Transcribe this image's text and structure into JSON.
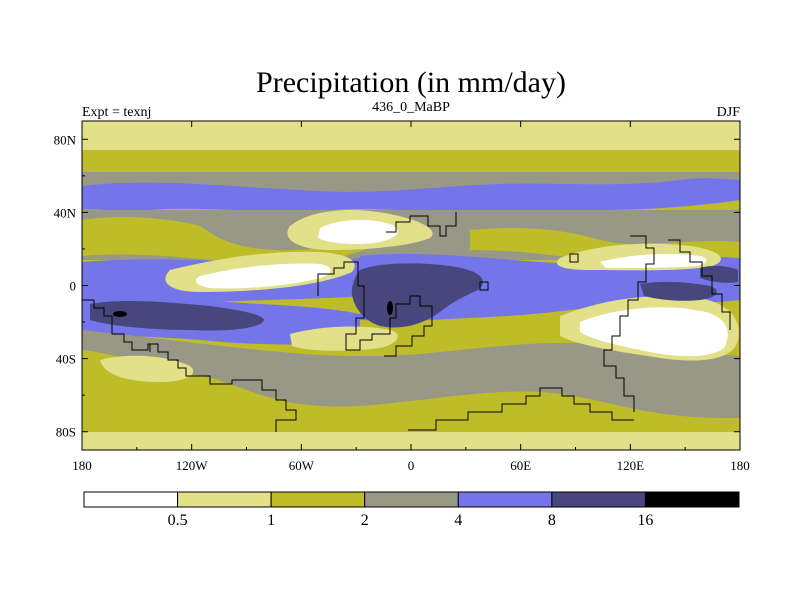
{
  "chart_data": {
    "type": "heatmap",
    "title": "Precipitation (in mm/day)",
    "left_string": "Expt = texnj",
    "center_string": "436_0_MaBP",
    "right_string": "DJF",
    "x_ticks": [
      "180",
      "120W",
      "60W",
      "0",
      "60E",
      "120E",
      "180"
    ],
    "x_values": [
      -180,
      -120,
      -60,
      0,
      60,
      120,
      180
    ],
    "y_ticks": [
      "80N",
      "40N",
      "0",
      "40S",
      "80S"
    ],
    "y_values": [
      80,
      40,
      0,
      -40,
      -80
    ],
    "xlim": [
      -180,
      180
    ],
    "ylim": [
      -90,
      90
    ],
    "colorbar": {
      "levels": [
        "0.5",
        "1",
        "2",
        "4",
        "8",
        "16"
      ],
      "colors": [
        "#ffffff",
        "#e3e08a",
        "#bfbc2a",
        "#989886",
        "#7575ea",
        "#47477e",
        "#000000"
      ]
    }
  }
}
